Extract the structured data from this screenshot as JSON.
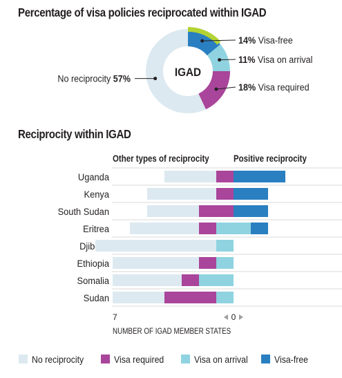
{
  "chart_data": [
    {
      "type": "pie",
      "title": "Percentage of visa policies reciprocated within IGAD",
      "center_label": "IGAD",
      "slices": [
        {
          "label": "Visa-free",
          "value": 14,
          "display": "14%",
          "color": "#2a7fc1"
        },
        {
          "label": "Visa on arrival",
          "value": 11,
          "display": "11%",
          "color": "#8fd3e0"
        },
        {
          "label": "Visa required",
          "value": 18,
          "display": "18%",
          "color": "#a9459a"
        },
        {
          "label": "No reciprocity",
          "value": 57,
          "display": "57%",
          "color": "#dce9f0"
        }
      ],
      "highlight_color": "#b3d334"
    },
    {
      "type": "bar",
      "orientation": "horizontal",
      "stacked": true,
      "title": "Reciprocity within IGAD",
      "left_header": "Other types of reciprocity",
      "right_header": "Positive reciprocity",
      "xlabel": "NUMBER OF IGAD MEMBER STATES",
      "axis_left_tick": "7",
      "axis_zero_tick": "0",
      "categories": [
        "Uganda",
        "Kenya",
        "South Sudan",
        "Eritrea",
        "Djibouti",
        "Ethiopia",
        "Somalia",
        "Sudan"
      ],
      "series": [
        {
          "name": "No reciprocity",
          "side": "left",
          "color": "#dce9f0",
          "values": [
            3,
            4,
            3,
            4,
            7,
            5,
            4,
            3
          ]
        },
        {
          "name": "Visa required",
          "side": "left",
          "color": "#a9459a",
          "values": [
            1,
            1,
            2,
            1,
            0,
            1,
            1,
            3
          ]
        },
        {
          "name": "Visa on arrival",
          "side": "center",
          "color": "#8fd3e0",
          "values": [
            0,
            0,
            0,
            2,
            1,
            1,
            2,
            1
          ]
        },
        {
          "name": "Visa-free",
          "side": "right",
          "color": "#2a7fc1",
          "values": [
            3,
            2,
            2,
            1,
            0,
            0,
            0,
            0
          ]
        }
      ]
    }
  ],
  "legend": [
    {
      "label": "No reciprocity",
      "color": "#dce9f0"
    },
    {
      "label": "Visa required",
      "color": "#a9459a"
    },
    {
      "label": "Visa on arrival",
      "color": "#8fd3e0"
    },
    {
      "label": "Visa-free",
      "color": "#2a7fc1"
    }
  ]
}
